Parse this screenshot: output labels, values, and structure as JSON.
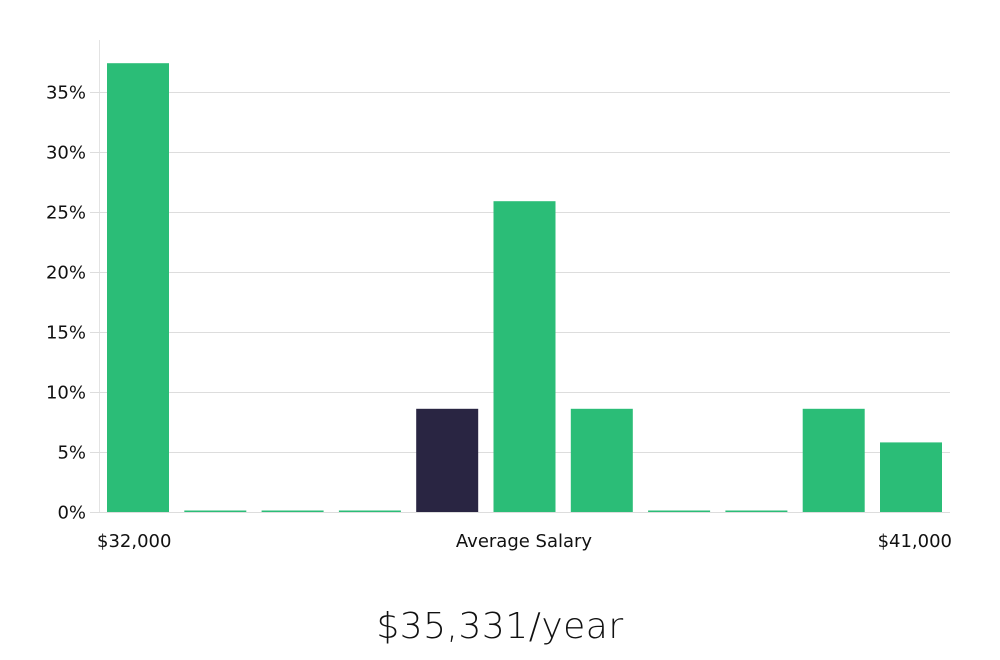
{
  "chart_data": {
    "type": "bar",
    "title": "",
    "xlabel": "Average Salary",
    "ylabel": "",
    "x_range_labels": {
      "min": "$32,000",
      "max": "$41,000"
    },
    "ylim": [
      0,
      40
    ],
    "yticks": [
      0,
      5,
      10,
      15,
      20,
      25,
      30,
      35
    ],
    "ytick_labels": [
      "0%",
      "5%",
      "10%",
      "15%",
      "20%",
      "25%",
      "30%",
      "35%"
    ],
    "values": [
      37.4,
      0.0,
      0.0,
      0.0,
      8.6,
      25.9,
      8.6,
      0.0,
      0.0,
      8.6,
      5.8
    ],
    "highlight_index": 4,
    "colors": {
      "bar": "#2bbd77",
      "highlight": "#292542",
      "grid": "#dddddd",
      "axis": "#e3e3e3"
    }
  },
  "footer": {
    "salary": "$35,331/year"
  }
}
